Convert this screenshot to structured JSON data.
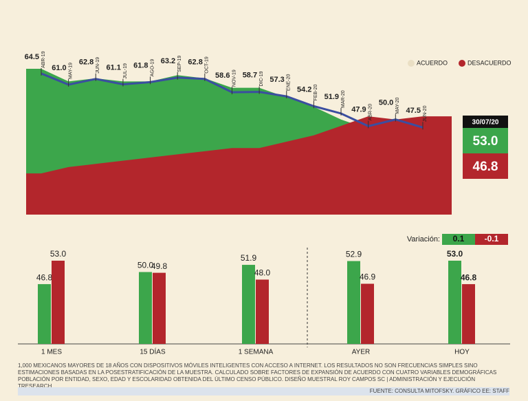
{
  "chart_data": [
    {
      "type": "area_line",
      "categories": [
        "ABR-19",
        "MAY-19",
        "JUN-19",
        "JUL-19",
        "AGO-19",
        "SEP-19",
        "OCT-19",
        "NOV-19",
        "DIC-19",
        "ENE-20",
        "FEB-20",
        "MAR-20",
        "ABR-20",
        "MAY-20",
        "JUN-20"
      ],
      "series": [
        {
          "name": "ACUERDO",
          "color": "#3ca64b",
          "legend_color": "#eadfc4",
          "values": [
            66,
            62,
            63,
            62,
            62,
            64,
            63,
            60,
            60,
            57,
            54,
            50,
            47,
            49,
            47
          ]
        },
        {
          "name": "DESACUERDO",
          "color": "#b3262c",
          "legend_color": "#b3262c",
          "values": [
            33,
            35,
            36,
            37,
            38,
            39,
            40,
            41,
            41,
            43,
            45,
            48,
            51,
            50,
            51
          ]
        }
      ],
      "line": {
        "color": "#3b4ea0",
        "values": [
          64.5,
          61,
          62.8,
          61.1,
          61.8,
          63.2,
          62.8,
          58.6,
          58.7,
          57.3,
          54.2,
          51.9,
          47.9,
          50,
          47.5
        ],
        "value_labels": [
          "64.5",
          "61.0",
          "62.8",
          "61.1",
          "61.8",
          "63.2",
          "62.8",
          "58.6",
          "58.7",
          "57.3",
          "54.2",
          "51.9",
          "47.9",
          "50.0",
          "47.5"
        ]
      },
      "ylim": [
        20,
        66
      ],
      "latest": {
        "date": "30/07/20",
        "values": [
          53,
          46.8
        ],
        "value_labels": [
          "53.0",
          "46.8"
        ]
      }
    },
    {
      "type": "bar",
      "categories": [
        "1 MES",
        "15 DÍAS",
        "1 SEMANA",
        "AYER",
        "HOY"
      ],
      "series": [
        {
          "name": "ACUERDO",
          "color": "#3ca64b",
          "values": [
            46.8,
            50,
            51.9,
            52.9,
            53
          ],
          "value_labels": [
            "46.8",
            "50.0",
            "51.9",
            "52.9",
            "53.0"
          ]
        },
        {
          "name": "DESACUERDO",
          "color": "#b3262c",
          "values": [
            53,
            49.8,
            48,
            46.9,
            46.8
          ],
          "value_labels": [
            "53.0",
            "49.8",
            "48.0",
            "46.9",
            "46.8"
          ]
        }
      ],
      "ylim": [
        31,
        55
      ],
      "variation": {
        "label": "Variación:",
        "values": [
          0.1,
          -0.1
        ]
      }
    }
  ],
  "footnote": "1,000 MEXICANOS MAYORES DE 18 AÑOS CON DISPOSITIVOS MÓVILES INTELIGENTES CON ACCESO A INTERNET. LOS RESULTADOS NO SON FRECUENCIAS SIMPLES SINO ESTIMACIONES BASADAS EN LA POSESTRATIFICACIÓN DE LA MUESTRA. CALCULADO SOBRE FACTORES DE EXPANSIÓN DE ACUERDO CON CUATRO VARIABLES DEMOGRÁFICAS POBLACIÓN POR ENTIDAD, SEXO, EDAD Y ESCOLARIDAD OBTENIDA DEL ÚLTIMO CENSO PÚBLICO. DISEÑO MUESTRAL ROY CAMPOS SC | ADMINISTRACIÓN Y EJECUCIÓN TRESEARCH.",
  "source": "FUENTE: CONSULTA MITOFSKY. GRÁFICO EE: STAFF"
}
